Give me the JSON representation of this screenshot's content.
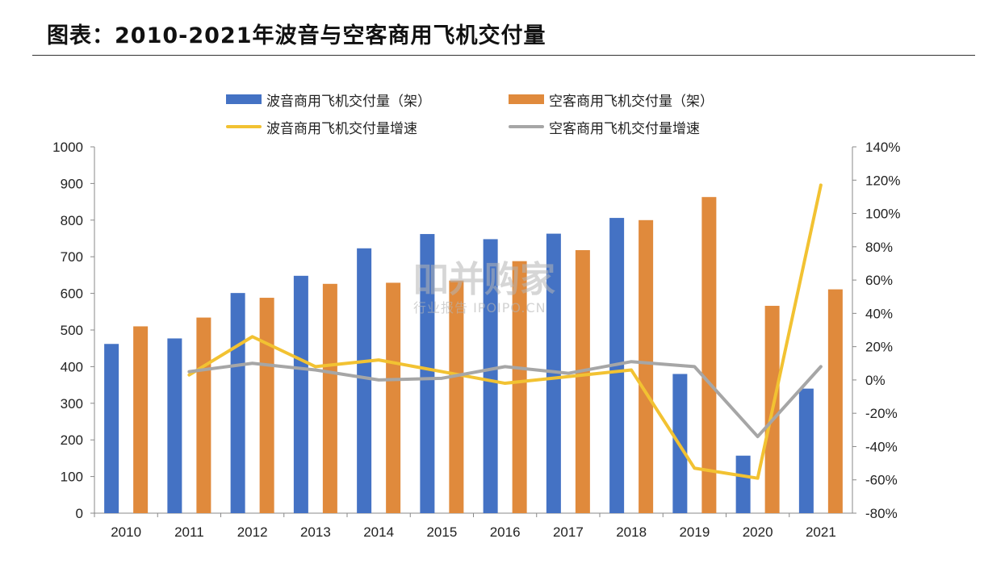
{
  "title": "图表：2010-2021年波音与空客商用飞机交付量",
  "watermark": {
    "main": "吅并购家",
    "sub": "行业报告 IPOIPO.CN"
  },
  "colors": {
    "boeing": "#4472C4",
    "airbus": "#E08A3C",
    "boeing_growth": "#F2C232",
    "airbus_growth": "#A6A6A6"
  },
  "chart_data": {
    "type": "bar",
    "categories": [
      "2010",
      "2011",
      "2012",
      "2013",
      "2014",
      "2015",
      "2016",
      "2017",
      "2018",
      "2019",
      "2020",
      "2021"
    ],
    "series": [
      {
        "name": "波音商用飞机交付量（架）",
        "type": "bar",
        "axis": "left",
        "values": [
          462,
          477,
          601,
          648,
          723,
          762,
          748,
          763,
          806,
          380,
          157,
          340
        ]
      },
      {
        "name": "空客商用飞机交付量（架）",
        "type": "bar",
        "axis": "left",
        "values": [
          510,
          534,
          588,
          626,
          629,
          635,
          688,
          718,
          800,
          863,
          566,
          611
        ]
      },
      {
        "name": "波音商用飞机交付量增速",
        "type": "line",
        "axis": "right",
        "values": [
          null,
          3,
          26,
          8,
          12,
          5,
          -2,
          2,
          6,
          -53,
          -59,
          117
        ]
      },
      {
        "name": "空客商用飞机交付量增速",
        "type": "line",
        "axis": "right",
        "values": [
          null,
          5,
          10,
          6,
          0,
          1,
          8,
          4,
          11,
          8,
          -34,
          8
        ]
      }
    ],
    "y_left": {
      "min": 0,
      "max": 1000,
      "ticks": [
        "0",
        "100",
        "200",
        "300",
        "400",
        "500",
        "600",
        "700",
        "800",
        "900",
        "1000"
      ]
    },
    "y_right": {
      "min": -80,
      "max": 140,
      "ticks": [
        "-80%",
        "-60%",
        "-40%",
        "-20%",
        "0%",
        "20%",
        "40%",
        "60%",
        "80%",
        "100%",
        "120%",
        "140%"
      ]
    },
    "grid": false,
    "legend_position": "top"
  }
}
